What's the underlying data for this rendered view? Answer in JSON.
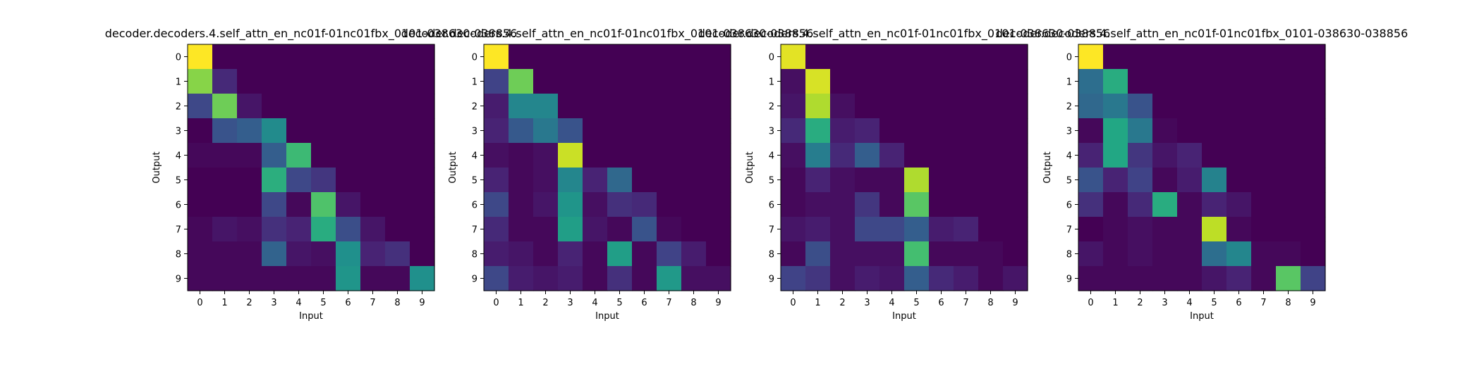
{
  "chart_data": [
    {
      "type": "heatmap",
      "title": "decoder.decoders.4.self_attn_en_nc01f-01nc01fbx_0101-038630-038856",
      "xlabel": "Input",
      "ylabel": "Output",
      "x_ticks": [
        "0",
        "1",
        "2",
        "3",
        "4",
        "5",
        "6",
        "7",
        "8",
        "9"
      ],
      "y_ticks": [
        "0",
        "1",
        "2",
        "3",
        "4",
        "5",
        "6",
        "7",
        "8",
        "9"
      ],
      "colormap": "viridis",
      "value_range": [
        0,
        1
      ],
      "matrix": [
        [
          1.0,
          0.0,
          0.0,
          0.0,
          0.0,
          0.0,
          0.0,
          0.0,
          0.0,
          0.0
        ],
        [
          0.82,
          0.12,
          0.0,
          0.0,
          0.0,
          0.0,
          0.0,
          0.0,
          0.0,
          0.0
        ],
        [
          0.22,
          0.78,
          0.06,
          0.0,
          0.0,
          0.0,
          0.0,
          0.0,
          0.0,
          0.0
        ],
        [
          0.0,
          0.26,
          0.3,
          0.48,
          0.0,
          0.0,
          0.0,
          0.0,
          0.0,
          0.0
        ],
        [
          0.02,
          0.02,
          0.02,
          0.3,
          0.68,
          0.0,
          0.0,
          0.0,
          0.0,
          0.0
        ],
        [
          0.0,
          0.0,
          0.0,
          0.63,
          0.22,
          0.16,
          0.0,
          0.0,
          0.0,
          0.0
        ],
        [
          0.0,
          0.0,
          0.0,
          0.22,
          0.02,
          0.72,
          0.06,
          0.0,
          0.0,
          0.0
        ],
        [
          0.02,
          0.06,
          0.04,
          0.14,
          0.1,
          0.62,
          0.24,
          0.06,
          0.0,
          0.0
        ],
        [
          0.02,
          0.02,
          0.02,
          0.32,
          0.06,
          0.04,
          0.5,
          0.1,
          0.14,
          0.0
        ],
        [
          0.02,
          0.02,
          0.02,
          0.02,
          0.02,
          0.02,
          0.52,
          0.02,
          0.02,
          0.5
        ]
      ]
    },
    {
      "type": "heatmap",
      "title": "decoder.decoders.4.self_attn_en_nc01f-01nc01fbx_0101-038630-038856",
      "xlabel": "Input",
      "ylabel": "Output",
      "x_ticks": [
        "0",
        "1",
        "2",
        "3",
        "4",
        "5",
        "6",
        "7",
        "8",
        "9"
      ],
      "y_ticks": [
        "0",
        "1",
        "2",
        "3",
        "4",
        "5",
        "6",
        "7",
        "8",
        "9"
      ],
      "colormap": "viridis",
      "value_range": [
        0,
        1
      ],
      "matrix": [
        [
          1.0,
          0.0,
          0.0,
          0.0,
          0.0,
          0.0,
          0.0,
          0.0,
          0.0,
          0.0
        ],
        [
          0.2,
          0.78,
          0.0,
          0.0,
          0.0,
          0.0,
          0.0,
          0.0,
          0.0,
          0.0
        ],
        [
          0.08,
          0.46,
          0.46,
          0.0,
          0.0,
          0.0,
          0.0,
          0.0,
          0.0,
          0.0
        ],
        [
          0.1,
          0.28,
          0.4,
          0.26,
          0.0,
          0.0,
          0.0,
          0.0,
          0.0,
          0.0
        ],
        [
          0.04,
          0.02,
          0.04,
          0.92,
          0.0,
          0.0,
          0.0,
          0.0,
          0.0,
          0.0
        ],
        [
          0.1,
          0.02,
          0.04,
          0.46,
          0.1,
          0.34,
          0.0,
          0.0,
          0.0,
          0.0
        ],
        [
          0.22,
          0.02,
          0.06,
          0.52,
          0.04,
          0.14,
          0.12,
          0.0,
          0.0,
          0.0
        ],
        [
          0.12,
          0.02,
          0.02,
          0.56,
          0.06,
          0.02,
          0.26,
          0.02,
          0.0,
          0.0
        ],
        [
          0.08,
          0.06,
          0.02,
          0.1,
          0.02,
          0.56,
          0.02,
          0.2,
          0.08,
          0.0
        ],
        [
          0.22,
          0.08,
          0.06,
          0.08,
          0.02,
          0.14,
          0.02,
          0.54,
          0.04,
          0.04
        ]
      ]
    },
    {
      "type": "heatmap",
      "title": "decoder.decoders.4.self_attn_en_nc01f-01nc01fbx_0101-038630-038856",
      "xlabel": "Input",
      "ylabel": "Output",
      "x_ticks": [
        "0",
        "1",
        "2",
        "3",
        "4",
        "5",
        "6",
        "7",
        "8",
        "9"
      ],
      "y_ticks": [
        "0",
        "1",
        "2",
        "3",
        "4",
        "5",
        "6",
        "7",
        "8",
        "9"
      ],
      "colormap": "viridis",
      "value_range": [
        0,
        1
      ],
      "matrix": [
        [
          0.96,
          0.0,
          0.0,
          0.0,
          0.0,
          0.0,
          0.0,
          0.0,
          0.0,
          0.0
        ],
        [
          0.04,
          0.94,
          0.0,
          0.0,
          0.0,
          0.0,
          0.0,
          0.0,
          0.0,
          0.0
        ],
        [
          0.06,
          0.88,
          0.04,
          0.0,
          0.0,
          0.0,
          0.0,
          0.0,
          0.0,
          0.0
        ],
        [
          0.12,
          0.62,
          0.08,
          0.1,
          0.0,
          0.0,
          0.0,
          0.0,
          0.0,
          0.0
        ],
        [
          0.04,
          0.42,
          0.12,
          0.3,
          0.1,
          0.0,
          0.0,
          0.0,
          0.0,
          0.0
        ],
        [
          0.02,
          0.1,
          0.04,
          0.02,
          0.02,
          0.88,
          0.0,
          0.0,
          0.0,
          0.0
        ],
        [
          0.02,
          0.04,
          0.04,
          0.16,
          0.02,
          0.74,
          0.0,
          0.0,
          0.0,
          0.0
        ],
        [
          0.06,
          0.08,
          0.04,
          0.22,
          0.22,
          0.3,
          0.08,
          0.1,
          0.0,
          0.0
        ],
        [
          0.02,
          0.24,
          0.04,
          0.04,
          0.04,
          0.7,
          0.02,
          0.02,
          0.02,
          0.0
        ],
        [
          0.2,
          0.16,
          0.04,
          0.08,
          0.06,
          0.3,
          0.12,
          0.08,
          0.02,
          0.06
        ]
      ]
    },
    {
      "type": "heatmap",
      "title": "decoder.decoders.4.self_attn_en_nc01f-01nc01fbx_0101-038630-038856",
      "xlabel": "Input",
      "ylabel": "Output",
      "x_ticks": [
        "0",
        "1",
        "2",
        "3",
        "4",
        "5",
        "6",
        "7",
        "8",
        "9"
      ],
      "y_ticks": [
        "0",
        "1",
        "2",
        "3",
        "4",
        "5",
        "6",
        "7",
        "8",
        "9"
      ],
      "colormap": "viridis",
      "value_range": [
        0,
        1
      ],
      "matrix": [
        [
          1.0,
          0.0,
          0.0,
          0.0,
          0.0,
          0.0,
          0.0,
          0.0,
          0.0,
          0.0
        ],
        [
          0.36,
          0.62,
          0.0,
          0.0,
          0.0,
          0.0,
          0.0,
          0.0,
          0.0,
          0.0
        ],
        [
          0.34,
          0.4,
          0.26,
          0.0,
          0.0,
          0.0,
          0.0,
          0.0,
          0.0,
          0.0
        ],
        [
          0.02,
          0.6,
          0.4,
          0.02,
          0.0,
          0.0,
          0.0,
          0.0,
          0.0,
          0.0
        ],
        [
          0.1,
          0.6,
          0.16,
          0.06,
          0.1,
          0.0,
          0.0,
          0.0,
          0.0,
          0.0
        ],
        [
          0.26,
          0.1,
          0.2,
          0.02,
          0.08,
          0.44,
          0.0,
          0.0,
          0.0,
          0.0
        ],
        [
          0.14,
          0.02,
          0.12,
          0.62,
          0.02,
          0.1,
          0.06,
          0.0,
          0.0,
          0.0
        ],
        [
          0.0,
          0.02,
          0.04,
          0.02,
          0.02,
          0.9,
          0.02,
          0.0,
          0.0,
          0.0
        ],
        [
          0.06,
          0.02,
          0.04,
          0.02,
          0.02,
          0.36,
          0.46,
          0.02,
          0.02,
          0.0
        ],
        [
          0.02,
          0.02,
          0.02,
          0.02,
          0.02,
          0.06,
          0.1,
          0.02,
          0.74,
          0.2
        ]
      ]
    }
  ]
}
